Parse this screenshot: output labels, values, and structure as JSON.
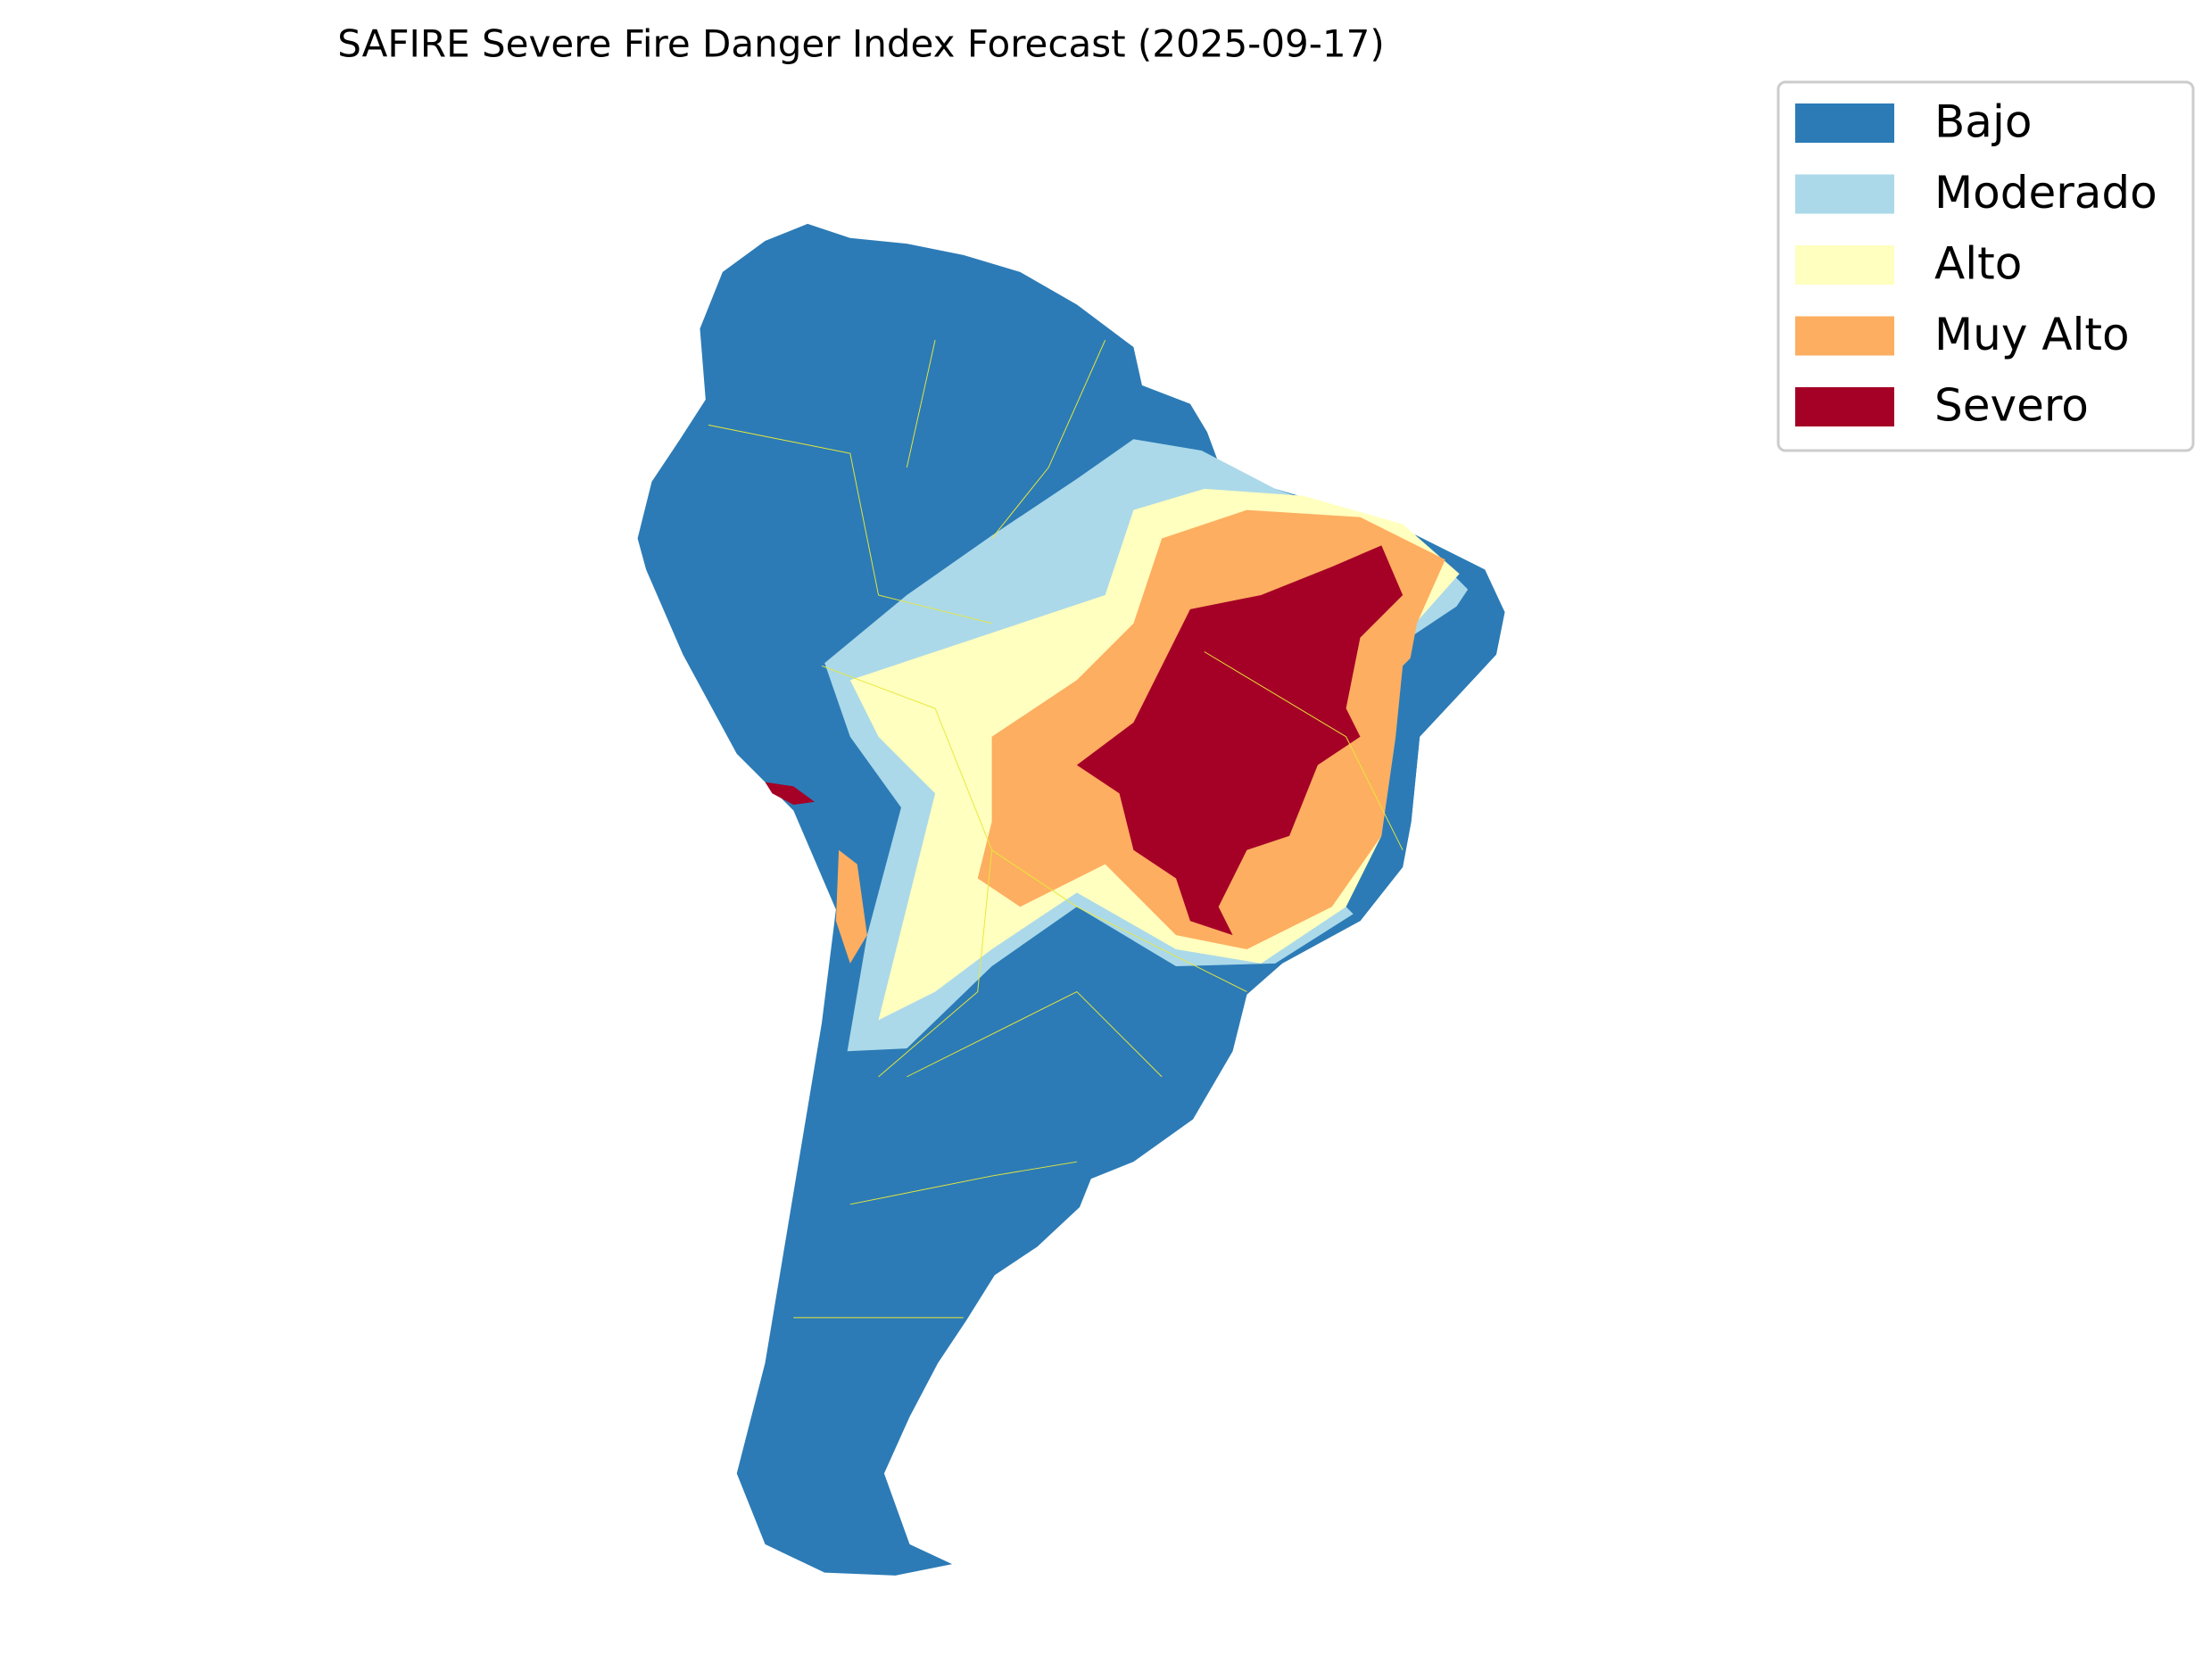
{
  "title": "SAFIRE Severe Fire Danger Index Forecast (2025-09-17)",
  "legend": {
    "items": [
      {
        "label": "Bajo",
        "color": "#2c7bb6"
      },
      {
        "label": "Moderado",
        "color": "#abd9e9"
      },
      {
        "label": "Alto",
        "color": "#ffffbf"
      },
      {
        "label": "Muy Alto",
        "color": "#fdae61"
      },
      {
        "label": "Severo",
        "color": "#a50026"
      }
    ]
  }
}
